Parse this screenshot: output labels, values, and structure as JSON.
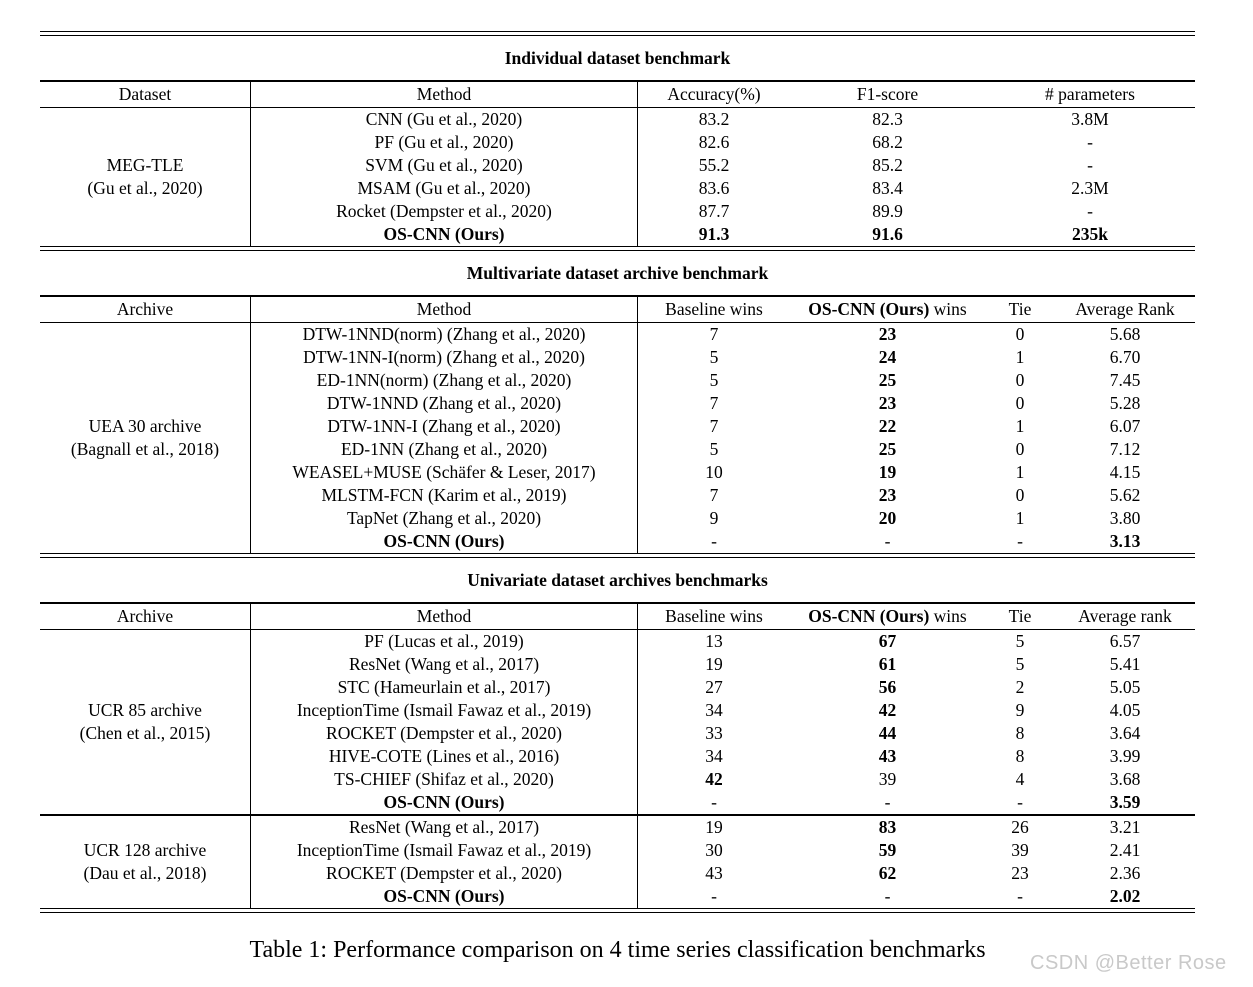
{
  "page": {
    "caption": "Table 1: Performance comparison on 4 time series classification benchmarks",
    "watermark": "CSDN @Better Rose"
  },
  "colors": {
    "text": "#000000",
    "background": "#ffffff",
    "watermark": "#c9c9c9"
  },
  "t1": {
    "title": "Individual dataset benchmark",
    "headers": {
      "dataset": "Dataset",
      "method": "Method",
      "acc": "Accuracy(%)",
      "f1": "F1-score",
      "params": "# parameters"
    },
    "group": {
      "name": "MEG-TLE",
      "cite": "(Gu et al., 2020)"
    },
    "rows": [
      {
        "method": "CNN  (Gu et al., 2020)",
        "acc": "83.2",
        "f1": "82.3",
        "params": "3.8M"
      },
      {
        "method": "PF (Gu et al., 2020)",
        "acc": "82.6",
        "f1": "68.2",
        "params": "-"
      },
      {
        "method": "SVM  (Gu et al., 2020)",
        "acc": "55.2",
        "f1": "85.2",
        "params": "-"
      },
      {
        "method": "MSAM (Gu et al., 2020)",
        "acc": "83.6",
        "f1": "83.4",
        "params": "2.3M"
      },
      {
        "method": "Rocket (Dempster et al., 2020)",
        "acc": "87.7",
        "f1": "89.9",
        "params": "-"
      },
      {
        "method": "OS-CNN (Ours)",
        "acc": "91.3",
        "f1": "91.6",
        "params": "235k"
      }
    ]
  },
  "t2": {
    "title": "Multivariate dataset archive benchmark",
    "headers": {
      "archive": "Archive",
      "method": "Method",
      "baseline": "Baseline wins",
      "wins_bold": "OS-CNN (Ours)",
      "wins_rest": " wins",
      "tie": "Tie",
      "rank": "Average Rank"
    },
    "group": {
      "name": "UEA 30 archive",
      "cite": "(Bagnall et al., 2018)"
    },
    "rows": [
      {
        "method": "DTW-1NND(norm) (Zhang et al., 2020)",
        "baseline": "7",
        "wins": "23",
        "tie": "0",
        "rank": "5.68"
      },
      {
        "method": "DTW-1NN-I(norm) (Zhang et al., 2020)",
        "baseline": "5",
        "wins": "24",
        "tie": "1",
        "rank": "6.70"
      },
      {
        "method": "ED-1NN(norm) (Zhang et al., 2020)",
        "baseline": "5",
        "wins": "25",
        "tie": "0",
        "rank": "7.45"
      },
      {
        "method": "DTW-1NND (Zhang et al., 2020)",
        "baseline": "7",
        "wins": "23",
        "tie": "0",
        "rank": "5.28"
      },
      {
        "method": "DTW-1NN-I (Zhang et al., 2020)",
        "baseline": "7",
        "wins": "22",
        "tie": "1",
        "rank": "6.07"
      },
      {
        "method": "ED-1NN (Zhang et al., 2020)",
        "baseline": "5",
        "wins": "25",
        "tie": "0",
        "rank": "7.12"
      },
      {
        "method": "WEASEL+MUSE (Schäfer & Leser, 2017)",
        "baseline": "10",
        "wins": "19",
        "tie": "1",
        "rank": "4.15"
      },
      {
        "method": "MLSTM-FCN (Karim et al., 2019)",
        "baseline": "7",
        "wins": "23",
        "tie": "0",
        "rank": "5.62"
      },
      {
        "method": "TapNet (Zhang et al., 2020)",
        "baseline": "9",
        "wins": "20",
        "tie": "1",
        "rank": "3.80"
      },
      {
        "method": "OS-CNN (Ours)",
        "baseline": "-",
        "wins": "-",
        "tie": "-",
        "rank": "3.13"
      }
    ]
  },
  "t3": {
    "title": "Univariate dataset archives benchmarks",
    "headers": {
      "archive": "Archive",
      "method": "Method",
      "baseline": "Baseline wins",
      "wins_bold": "OS-CNN (Ours)",
      "wins_rest": " wins",
      "tie": "Tie",
      "rank": "Average rank"
    },
    "group1": {
      "name": "UCR 85 archive",
      "cite": "(Chen et al., 2015)"
    },
    "rows1": [
      {
        "method": "PF (Lucas et al., 2019)",
        "baseline": "13",
        "wins": "67",
        "tie": "5",
        "rank": "6.57"
      },
      {
        "method": "ResNet (Wang et al., 2017)",
        "baseline": "19",
        "wins": "61",
        "tie": "5",
        "rank": "5.41"
      },
      {
        "method": "STC (Hameurlain et al., 2017)",
        "baseline": "27",
        "wins": "56",
        "tie": "2",
        "rank": "5.05"
      },
      {
        "method": "InceptionTime (Ismail Fawaz et al., 2019)",
        "baseline": "34",
        "wins": "42",
        "tie": "9",
        "rank": "4.05"
      },
      {
        "method": "ROCKET (Dempster et al., 2020)",
        "baseline": "33",
        "wins": "44",
        "tie": "8",
        "rank": "3.64"
      },
      {
        "method": "HIVE-COTE (Lines et al., 2016)",
        "baseline": "34",
        "wins": "43",
        "tie": "8",
        "rank": "3.99"
      },
      {
        "method": "TS-CHIEF (Shifaz et al., 2020)",
        "baseline": "42",
        "wins": "39",
        "tie": "4",
        "rank": "3.68"
      },
      {
        "method": "OS-CNN (Ours)",
        "baseline": "-",
        "wins": "-",
        "tie": "-",
        "rank": "3.59"
      }
    ],
    "group2": {
      "name": "UCR 128 archive",
      "cite": "(Dau et al., 2018)"
    },
    "rows2": [
      {
        "method": "ResNet (Wang et al., 2017)",
        "baseline": "19",
        "wins": "83",
        "tie": "26",
        "rank": "3.21"
      },
      {
        "method": "InceptionTime (Ismail Fawaz et al., 2019)",
        "baseline": "30",
        "wins": "59",
        "tie": "39",
        "rank": "2.41"
      },
      {
        "method": "ROCKET (Dempster et al., 2020)",
        "baseline": "43",
        "wins": "62",
        "tie": "23",
        "rank": "2.36"
      },
      {
        "method": "OS-CNN (Ours)",
        "baseline": "-",
        "wins": "-",
        "tie": "-",
        "rank": "2.02"
      }
    ]
  }
}
